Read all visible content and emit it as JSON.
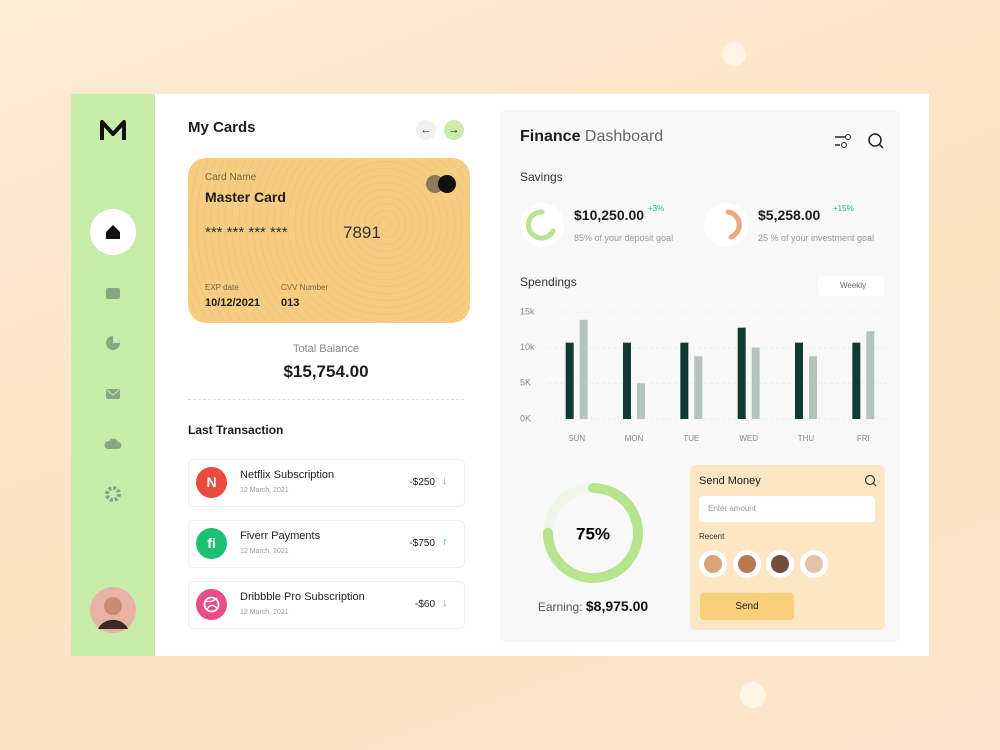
{
  "my_cards": {
    "title": "My Cards",
    "card": {
      "name_label": "Card Name",
      "name": "Master Card",
      "number_masked": "***  ***  ***  ***",
      "number_last": "7891",
      "exp_label": "EXP date",
      "exp": "10/12/2021",
      "cvv_label": "CVV Number",
      "cvv": "013"
    },
    "balance_label": "Total Balance",
    "balance": "$15,754.00"
  },
  "transactions": {
    "title": "Last Transaction",
    "items": [
      {
        "logo": "N",
        "name": "Netflix Subscription",
        "date": "12 March, 2021",
        "amount": "-$250"
      },
      {
        "logo": "fi",
        "name": "Fiverr Payments",
        "date": "12 March, 2021",
        "amount": "-$750"
      },
      {
        "logo": "",
        "name": "Dribbble Pro Subscription",
        "date": "12 March, 2021",
        "amount": "-$60"
      }
    ]
  },
  "dashboard": {
    "title_bold": "Finance",
    "title_light": "Dashboard",
    "savings_title": "Savings",
    "savings": [
      {
        "amount": "$10,250.00",
        "change": "+3%",
        "note": "85% of your deposit goal"
      },
      {
        "amount": "$5,258.00",
        "change": "+15%",
        "note": "25 % of your investment goal"
      }
    ],
    "period": "Weekly",
    "earning_gauge": {
      "value": 75,
      "label": "75%"
    },
    "earning_label": "Earning:",
    "earning": "$8,975.00"
  },
  "send_money": {
    "title": "Send Money",
    "placeholder": "Enter amount",
    "recent_label": "Recent",
    "button": "Send"
  },
  "chart_data": {
    "type": "bar",
    "title": "Spendings",
    "categories": [
      "SUN",
      "MON",
      "TUE",
      "WED",
      "THU",
      "FRI"
    ],
    "series": [
      {
        "color": "#0f3b32",
        "values": [
          10.7,
          10.7,
          10.7,
          12.8,
          10.7,
          10.7
        ]
      },
      {
        "color": "#b5c3bf",
        "values": [
          13.9,
          5.0,
          8.8,
          10.0,
          8.8,
          12.3
        ]
      }
    ],
    "ylim": [
      0,
      15
    ],
    "yticks": [
      {
        "value": 0,
        "label": "0K"
      },
      {
        "value": 5,
        "label": "5K"
      },
      {
        "value": 10,
        "label": "10k"
      },
      {
        "value": 15,
        "label": "15k"
      }
    ],
    "grid": true
  }
}
